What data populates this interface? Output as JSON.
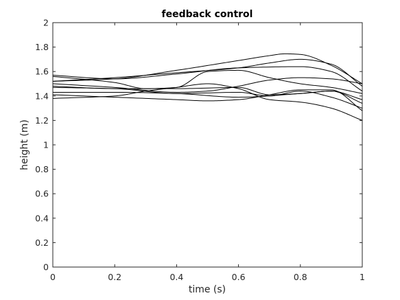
{
  "chart_data": {
    "type": "line",
    "title": "feedback control",
    "xlabel": "time (s)",
    "ylabel": "height (m)",
    "xlim": [
      0,
      1
    ],
    "ylim": [
      0,
      2
    ],
    "xticks": [
      "0",
      "0.2",
      "0.4",
      "0.6",
      "0.8",
      "1"
    ],
    "yticks": [
      "0",
      "0.2",
      "0.4",
      "0.6",
      "0.8",
      "1",
      "1.2",
      "1.4",
      "1.6",
      "1.8",
      "2"
    ],
    "grid": false,
    "line_color": "#000000",
    "series": [
      {
        "x": [
          0,
          0.2,
          0.4,
          0.6,
          0.7,
          0.75,
          0.8,
          0.9,
          1
        ],
        "y": [
          1.52,
          1.54,
          1.61,
          1.69,
          1.73,
          1.745,
          1.74,
          1.65,
          1.5
        ]
      },
      {
        "x": [
          0,
          0.2,
          0.4,
          0.6,
          0.7,
          0.8,
          0.9,
          1
        ],
        "y": [
          1.52,
          1.55,
          1.59,
          1.63,
          1.67,
          1.7,
          1.66,
          1.48
        ]
      },
      {
        "x": [
          0,
          0.2,
          0.4,
          0.6,
          0.8,
          0.9,
          1
        ],
        "y": [
          1.57,
          1.54,
          1.58,
          1.63,
          1.64,
          1.6,
          1.44
        ]
      },
      {
        "x": [
          0,
          0.2,
          0.3,
          0.4,
          0.5,
          0.6,
          0.7,
          0.8,
          0.9,
          1
        ],
        "y": [
          1.56,
          1.51,
          1.46,
          1.47,
          1.6,
          1.61,
          1.55,
          1.5,
          1.47,
          1.42
        ]
      },
      {
        "x": [
          0,
          0.2,
          0.4,
          0.5,
          0.6,
          0.7,
          0.8,
          0.9,
          1
        ],
        "y": [
          1.5,
          1.47,
          1.43,
          1.44,
          1.48,
          1.53,
          1.55,
          1.54,
          1.5
        ]
      },
      {
        "x": [
          0,
          0.2,
          0.4,
          0.6,
          0.7,
          0.8,
          0.9,
          1
        ],
        "y": [
          1.48,
          1.46,
          1.46,
          1.47,
          1.41,
          1.42,
          1.44,
          1.34
        ]
      },
      {
        "x": [
          0,
          0.2,
          0.4,
          0.6,
          0.7,
          0.8,
          0.9,
          1
        ],
        "y": [
          1.47,
          1.46,
          1.42,
          1.43,
          1.4,
          1.44,
          1.39,
          1.3
        ]
      },
      {
        "x": [
          0,
          0.2,
          0.4,
          0.6,
          0.8,
          0.9,
          1
        ],
        "y": [
          1.43,
          1.43,
          1.42,
          1.39,
          1.42,
          1.44,
          1.37
        ]
      },
      {
        "x": [
          0,
          0.2,
          0.3,
          0.4,
          0.5,
          0.6,
          0.7,
          0.8,
          0.9,
          1
        ],
        "y": [
          1.38,
          1.4,
          1.44,
          1.47,
          1.5,
          1.46,
          1.37,
          1.35,
          1.3,
          1.2
        ]
      },
      {
        "x": [
          0,
          0.2,
          0.4,
          0.5,
          0.6,
          0.7,
          0.8,
          0.9,
          1
        ],
        "y": [
          1.41,
          1.39,
          1.37,
          1.36,
          1.37,
          1.41,
          1.45,
          1.45,
          1.28
        ]
      }
    ]
  }
}
